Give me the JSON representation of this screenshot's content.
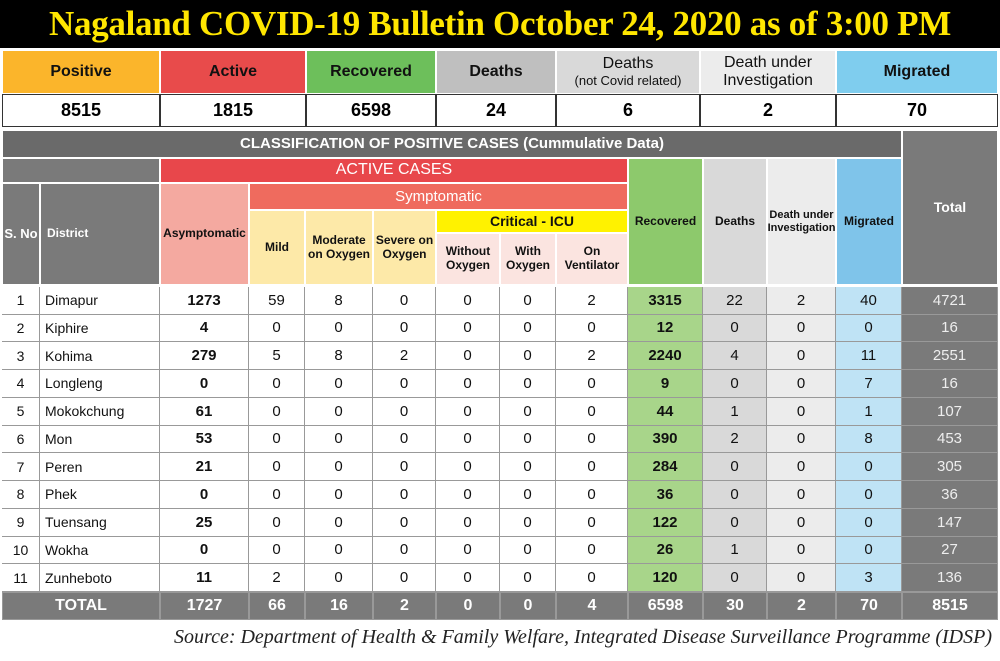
{
  "title": "Nagaland COVID-19 Bulletin October 24, 2020 as of 3:00 PM",
  "summary": {
    "headers": [
      {
        "label": "Positive"
      },
      {
        "label": "Active"
      },
      {
        "label": "Recovered"
      },
      {
        "label": "Deaths"
      },
      {
        "label": "Deaths",
        "sub": "(not Covid related)"
      },
      {
        "label": "Death under Investigation"
      },
      {
        "label": "Migrated"
      }
    ],
    "values": [
      8515,
      1815,
      6598,
      24,
      6,
      2,
      70
    ]
  },
  "table": {
    "title": "CLASSIFICATION OF POSITIVE CASES (Cummulative Data)",
    "headers": {
      "sno": "S. No",
      "district": "District",
      "active": "ACTIVE CASES",
      "asymptomatic": "Asymptomatic",
      "symptomatic": "Symptomatic",
      "mild": "Mild",
      "moderate": "Moderate on Oxygen",
      "severe": "Severe on Oxygen",
      "critical": "Critical - ICU",
      "without": "Without Oxygen",
      "with": "With Oxygen",
      "ventilator": "On Ventilator",
      "recovered": "Recovered",
      "deaths": "Deaths",
      "investigation": "Death under Investigation",
      "migrated": "Migrated",
      "total": "Total"
    },
    "rows": [
      [
        1,
        "Dimapur",
        1273,
        59,
        8,
        0,
        0,
        0,
        2,
        3315,
        22,
        2,
        40,
        4721
      ],
      [
        2,
        "Kiphire",
        4,
        0,
        0,
        0,
        0,
        0,
        0,
        12,
        0,
        0,
        0,
        16
      ],
      [
        3,
        "Kohima",
        279,
        5,
        8,
        2,
        0,
        0,
        2,
        2240,
        4,
        0,
        11,
        2551
      ],
      [
        4,
        "Longleng",
        0,
        0,
        0,
        0,
        0,
        0,
        0,
        9,
        0,
        0,
        7,
        16
      ],
      [
        5,
        "Mokokchung",
        61,
        0,
        0,
        0,
        0,
        0,
        0,
        44,
        1,
        0,
        1,
        107
      ],
      [
        6,
        "Mon",
        53,
        0,
        0,
        0,
        0,
        0,
        0,
        390,
        2,
        0,
        8,
        453
      ],
      [
        7,
        "Peren",
        21,
        0,
        0,
        0,
        0,
        0,
        0,
        284,
        0,
        0,
        0,
        305
      ],
      [
        8,
        "Phek",
        0,
        0,
        0,
        0,
        0,
        0,
        0,
        36,
        0,
        0,
        0,
        36
      ],
      [
        9,
        "Tuensang",
        25,
        0,
        0,
        0,
        0,
        0,
        0,
        122,
        0,
        0,
        0,
        147
      ],
      [
        10,
        "Wokha",
        0,
        0,
        0,
        0,
        0,
        0,
        0,
        26,
        1,
        0,
        0,
        27
      ],
      [
        11,
        "Zunheboto",
        11,
        2,
        0,
        0,
        0,
        0,
        0,
        120,
        0,
        0,
        3,
        136
      ]
    ],
    "total": {
      "label": "TOTAL",
      "values": [
        1727,
        66,
        16,
        2,
        0,
        0,
        4,
        6598,
        30,
        2,
        70,
        8515
      ]
    }
  },
  "source": "Source: Department of Health & Family Welfare, Integrated Disease Surveillance Programme (IDSP)"
}
